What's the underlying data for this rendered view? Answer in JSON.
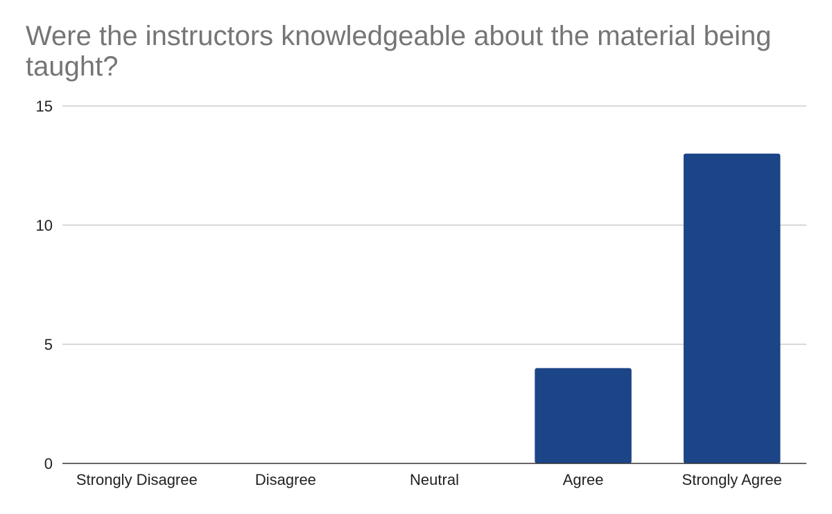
{
  "chart_data": {
    "type": "bar",
    "title": "Were the instructors knowledgeable about the material being taught?",
    "xlabel": "",
    "ylabel": "",
    "categories": [
      "Strongly Disagree",
      "Disagree",
      "Neutral",
      "Agree",
      "Strongly Agree"
    ],
    "values": [
      0,
      0,
      0,
      4,
      13
    ],
    "ylim": [
      0,
      15
    ],
    "yticks": [
      0,
      5,
      10,
      15
    ],
    "grid": true,
    "legend": "none",
    "colors": {
      "bar": "#1c4587",
      "grid": "#cccccc",
      "axis": "#333333",
      "title": "#757575",
      "text": "#222222"
    }
  }
}
